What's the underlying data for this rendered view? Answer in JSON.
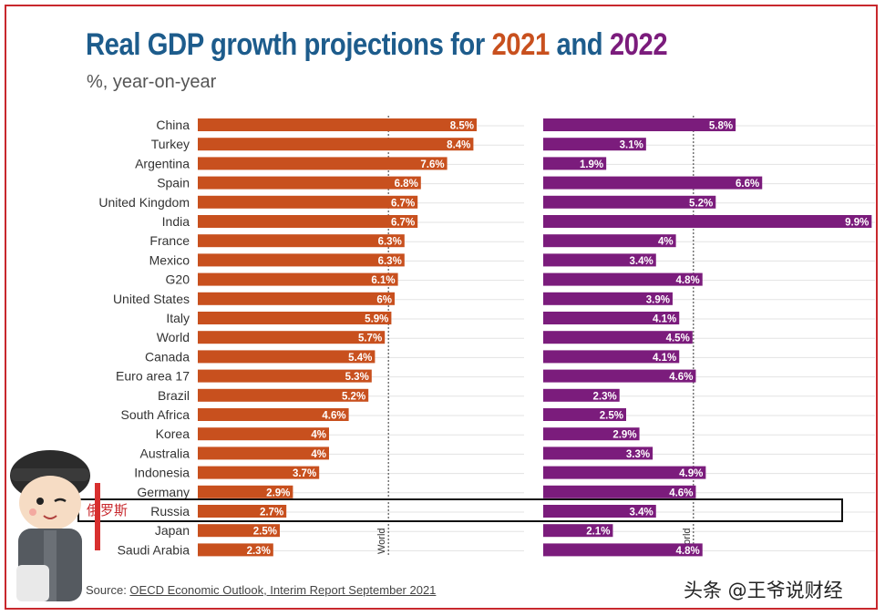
{
  "title": {
    "prefix": "Real GDP growth projections for ",
    "year1": "2021",
    "joiner": " and ",
    "year2": "2022"
  },
  "subtitle": "%, year-on-year",
  "source": {
    "label": "Source: ",
    "link": "OECD Economic Outlook, Interim Report September 2021"
  },
  "watermark": "头条 @王爷说财经",
  "highlight_label": "俄罗斯",
  "colors": {
    "y2021": "#c8501e",
    "y2022": "#7b1c7c",
    "title": "#1d5c8c"
  },
  "chart_data": {
    "type": "bar",
    "orientation": "horizontal",
    "categories": [
      "China",
      "Turkey",
      "Argentina",
      "Spain",
      "United Kingdom",
      "India",
      "France",
      "Mexico",
      "G20",
      "United States",
      "Italy",
      "World",
      "Canada",
      "Euro area 17",
      "Brazil",
      "South Africa",
      "Korea",
      "Australia",
      "Indonesia",
      "Germany",
      "Russia",
      "Japan",
      "Saudi Arabia"
    ],
    "series": [
      {
        "name": "2021",
        "values": [
          8.5,
          8.4,
          7.6,
          6.8,
          6.7,
          6.7,
          6.3,
          6.3,
          6.1,
          6,
          5.9,
          5.7,
          5.4,
          5.3,
          5.2,
          4.6,
          4,
          4,
          3.7,
          2.9,
          2.7,
          2.5,
          2.3
        ]
      },
      {
        "name": "2022",
        "values": [
          5.8,
          3.1,
          1.9,
          6.6,
          5.2,
          9.9,
          4,
          3.4,
          4.8,
          3.9,
          4.1,
          4.5,
          4.1,
          4.6,
          2.3,
          2.5,
          2.9,
          3.3,
          4.9,
          4.6,
          3.4,
          2.1,
          4.8
        ]
      }
    ],
    "data_labels": {
      "2021": [
        "8.5%",
        "8.4%",
        "7.6%",
        "6.8%",
        "6.7%",
        "6.7%",
        "6.3%",
        "6.3%",
        "6.1%",
        "6%",
        "5.9%",
        "5.7%",
        "5.4%",
        "5.3%",
        "5.2%",
        "4.6%",
        "4%",
        "4%",
        "3.7%",
        "2.9%",
        "2.7%",
        "2.5%",
        "2.3%"
      ],
      "2022": [
        "5.8%",
        "3.1%",
        "1.9%",
        "6.6%",
        "5.2%",
        "9.9%",
        "4%",
        "3.4%",
        "4.8%",
        "3.9%",
        "4.1%",
        "4.5%",
        "4.1%",
        "4.6%",
        "2.3%",
        "2.5%",
        "2.9%",
        "3.3%",
        "4.9%",
        "4.6%",
        "3.4%",
        "2.1%",
        "4.8%"
      ]
    },
    "reference_line": {
      "label": "World",
      "value_2021": 5.7,
      "value_2022": 4.5
    },
    "highlighted_category": "Russia"
  }
}
